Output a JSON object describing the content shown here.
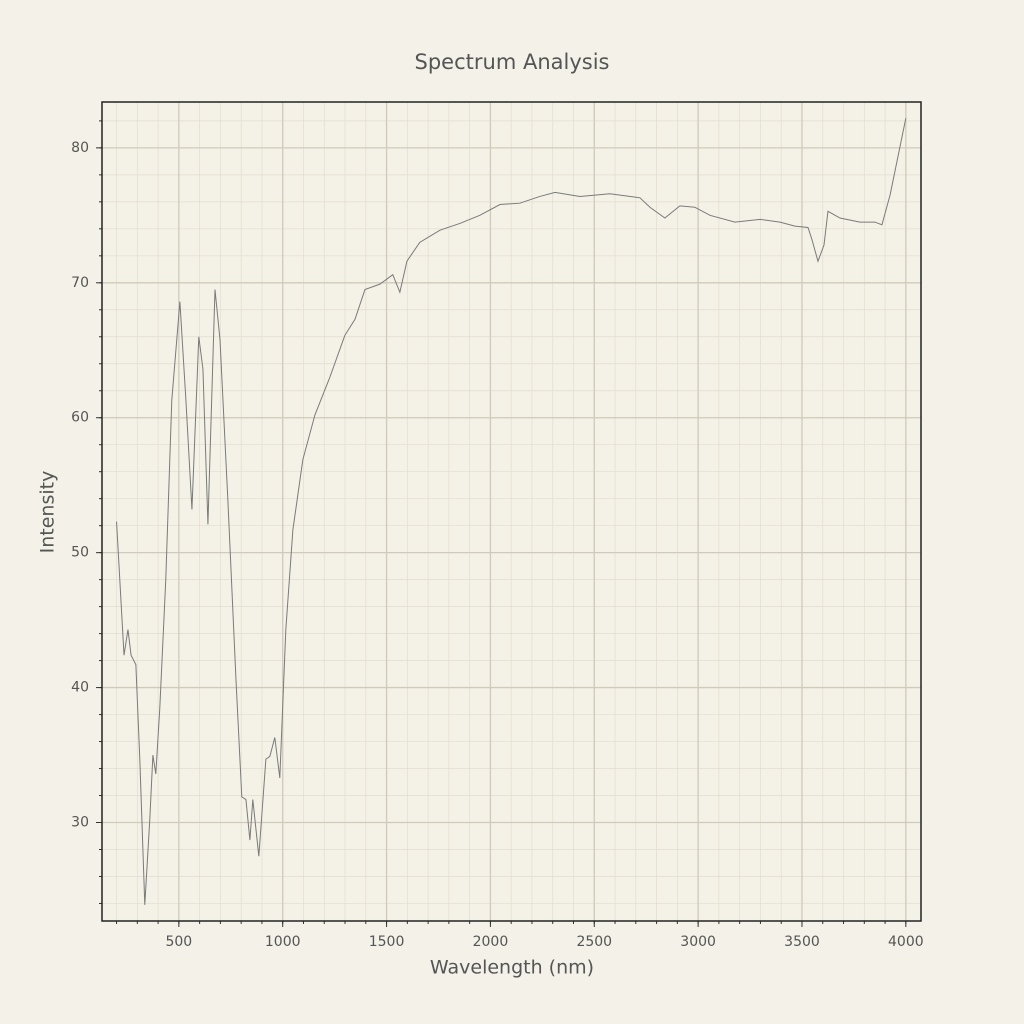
{
  "chart_data": {
    "type": "line",
    "title": "Spectrum Analysis",
    "x_label": "Wavelength (nm)",
    "y_label": "Intensity",
    "xlim": [
      130,
      4073
    ],
    "ylim": [
      22.7,
      83.4
    ],
    "xticks": [
      500,
      1000,
      1500,
      2000,
      2500,
      3000,
      3500,
      4000
    ],
    "yticks": [
      30,
      40,
      50,
      60,
      70,
      80
    ],
    "grid": true,
    "minor_grid": true,
    "series": [
      {
        "color": "#7a7a7a",
        "x": [
          200,
          236,
          255,
          270,
          293,
          312,
          336,
          360,
          375,
          389,
          408,
          437,
          466,
          505,
          534,
          563,
          596,
          616,
          640,
          674,
          698,
          736,
          775,
          803,
          823,
          842,
          856,
          885,
          919,
          938,
          962,
          986,
          1015,
          1049,
          1097,
          1155,
          1227,
          1299,
          1348,
          1396,
          1468,
          1530,
          1564,
          1598,
          1660,
          1757,
          1853,
          1949,
          2046,
          2142,
          2238,
          2311,
          2431,
          2575,
          2720,
          2768,
          2840,
          2912,
          2984,
          3057,
          3177,
          3298,
          3394,
          3466,
          3529,
          3548,
          3577,
          3606,
          3625,
          3683,
          3779,
          3851,
          3885,
          3924,
          4000
        ],
        "values": [
          52.3,
          42.4,
          44.3,
          42.4,
          41.7,
          34.7,
          23.9,
          30.2,
          35.0,
          33.6,
          38.4,
          48.0,
          61.3,
          68.6,
          61.3,
          53.2,
          66.0,
          63.6,
          52.1,
          69.5,
          65.8,
          53.9,
          40.6,
          31.9,
          31.7,
          28.7,
          31.7,
          27.5,
          34.7,
          34.9,
          36.3,
          33.3,
          44.3,
          51.7,
          56.9,
          60.2,
          63.0,
          66.1,
          67.3,
          69.5,
          69.9,
          70.6,
          69.3,
          71.6,
          73.0,
          73.9,
          74.4,
          75.0,
          75.8,
          75.9,
          76.4,
          76.7,
          76.4,
          76.6,
          76.3,
          75.6,
          74.8,
          75.7,
          75.6,
          75.0,
          74.5,
          74.7,
          74.5,
          74.2,
          74.1,
          73.2,
          71.6,
          72.8,
          75.3,
          74.8,
          74.5,
          74.5,
          74.3,
          76.5,
          82.2
        ]
      }
    ]
  }
}
